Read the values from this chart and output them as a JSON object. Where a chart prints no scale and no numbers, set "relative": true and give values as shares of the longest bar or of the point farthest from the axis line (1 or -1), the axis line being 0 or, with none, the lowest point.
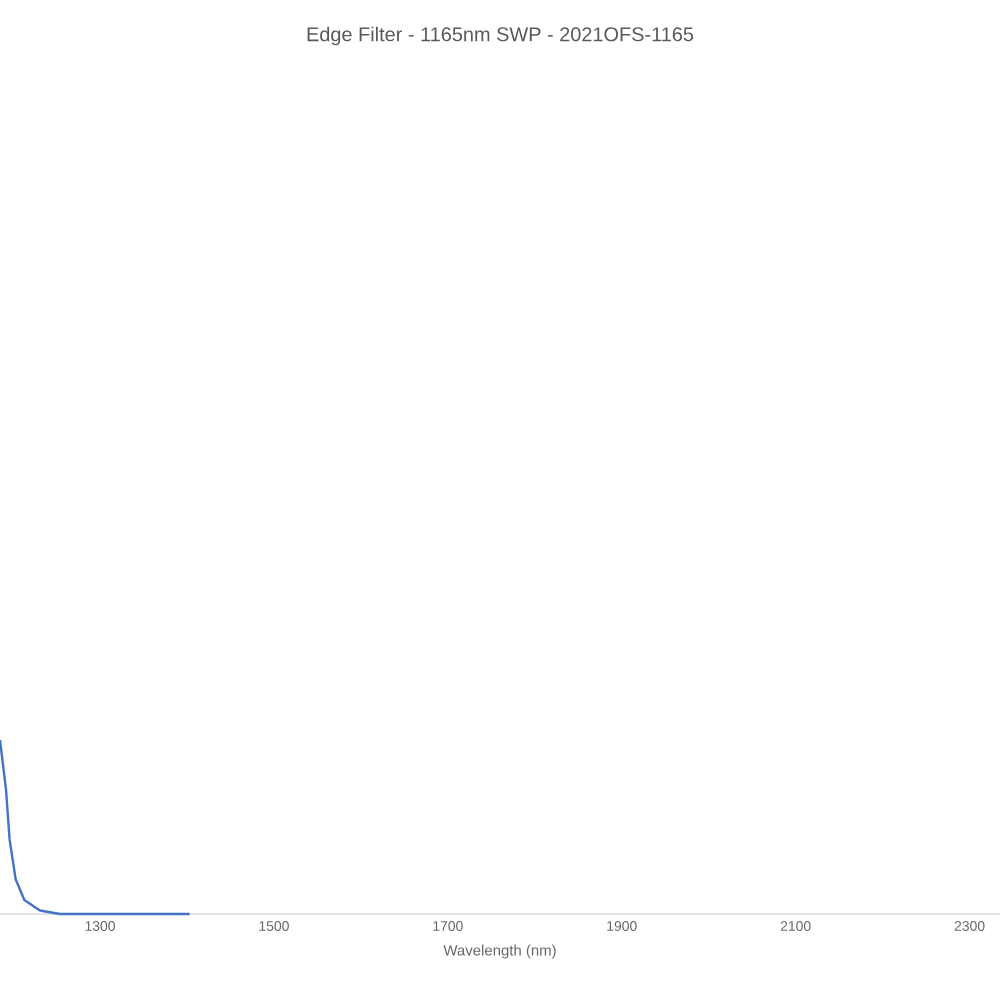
{
  "chart_data": {
    "type": "line",
    "title": "Edge Filter - 1165nm SWP - 2021OFS-1165",
    "xlabel": "Wavelength (nm)",
    "relative": true,
    "xlim": [
      1185,
      2335
    ],
    "xticks": [
      1300,
      1500,
      1700,
      1900,
      2100,
      2300
    ],
    "series": [
      {
        "color": "#4472c4",
        "x": [
          1185,
          1192,
          1196,
          1203,
          1213,
          1231,
          1254,
          1300,
          1403
        ],
        "values": [
          1,
          0.71,
          0.43,
          0.2,
          0.08,
          0.02,
          0,
          0,
          0
        ]
      }
    ],
    "marker": "none",
    "line_style": "solid"
  }
}
